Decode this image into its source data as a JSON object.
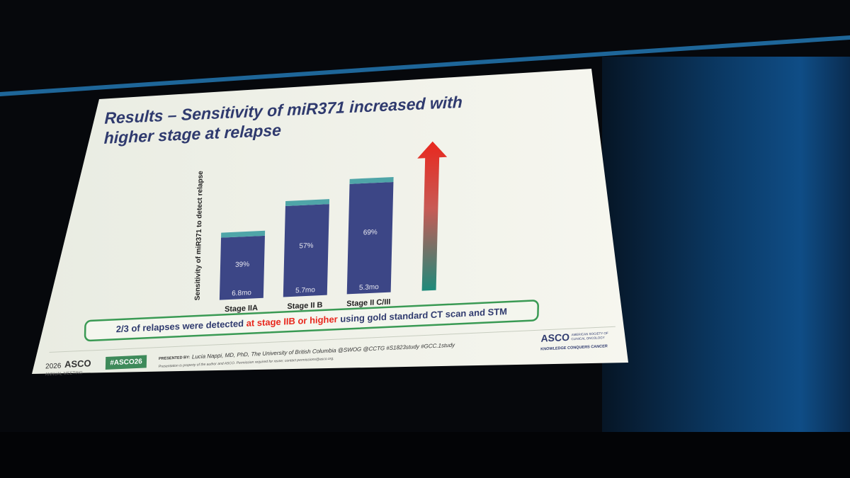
{
  "chart_data": {
    "type": "bar",
    "title": [
      "Results – Sensitivity of miR371 increased with",
      "higher stage at relapse"
    ],
    "y_label": "Sensitivity of miR371 to detect relapse",
    "categories": [
      "Stage IIA",
      "Stage II B",
      "Stage II C/III"
    ],
    "values": [
      39,
      57,
      69
    ],
    "value_labels": [
      "39%",
      "57%",
      "69%"
    ],
    "time_labels": [
      "6.8mo",
      "5.7mo",
      "5.3mo"
    ],
    "color": "#3c4686",
    "cap_color": "#4fa5a8"
  },
  "callout": {
    "before": "2/3 of relapses were detected ",
    "highlight": "at stage IIB or higher",
    "after": " using gold standard CT scan and STM"
  },
  "footer": {
    "meeting_year": "2026",
    "meeting_brand": "ASCO",
    "meeting_sub": "ANNUAL MEETING",
    "hashtag": "#ASCO26",
    "presented_by": "PRESENTED BY:",
    "presenter": "Lucia Nappi, MD, PhD, The University of British Columbia @SWOG @CCTG #S1823study #GCC.1study",
    "disclaimer": "Presentation is property of the author and ASCO. Permission required for reuse; contact permissions@asco.org.",
    "logo": "ASCO",
    "logo_sub_1": "AMERICAN SOCIETY OF",
    "logo_sub_2": "CLINICAL ONCOLOGY",
    "tagline": "KNOWLEDGE CONQUERS CANCER"
  }
}
